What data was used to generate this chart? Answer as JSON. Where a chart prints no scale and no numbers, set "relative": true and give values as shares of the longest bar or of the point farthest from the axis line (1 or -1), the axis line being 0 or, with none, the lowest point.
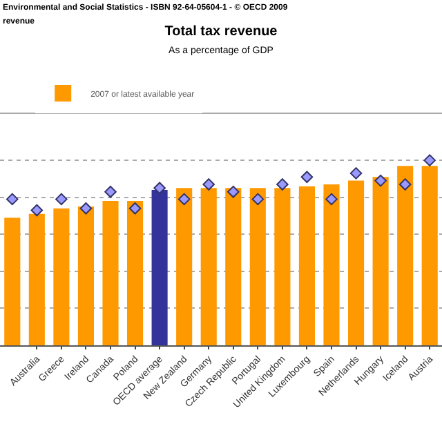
{
  "chart_data": {
    "type": "bar",
    "title": "Total tax revenue",
    "subtitle": "As a percentage of GDP",
    "annotations": [
      "Environmental and Social Statistics - ISBN 92-64-05604-1 - © OECD 2009",
      "revenue"
    ],
    "relative": true,
    "grid": "y",
    "legend": "top",
    "categories": [
      null,
      "Australia",
      "Greece",
      "Ireland",
      "Canada",
      "Poland",
      "OECD average",
      "New Zealand",
      "Germany",
      "Czech Republic",
      "Portugal",
      "United Kingdom",
      "Luxembourg",
      "Spain",
      "Netherlands",
      "Hungary",
      "Iceland",
      "Austria"
    ],
    "series": [
      {
        "name": "2007 or latest available year",
        "color": "#ff9900",
        "colors": [
          "#ff9900",
          "#ff9900",
          "#ff9900",
          "#ff9900",
          "#ff9900",
          "#ff9900",
          "#333399",
          "#ff9900",
          "#ff9900",
          "#ff9900",
          "#ff9900",
          "#ff9900",
          "#ff9900",
          "#ff9900",
          "#ff9900",
          "#ff9900",
          "#ff9900",
          "#ff9900"
        ],
        "values": [
          0.69,
          0.71,
          0.74,
          0.75,
          0.78,
          0.78,
          0.84,
          0.85,
          0.85,
          0.85,
          0.85,
          0.85,
          0.86,
          0.87,
          0.89,
          0.91,
          0.97,
          0.97
        ]
      },
      {
        "type": "scatter",
        "color": "#9999ff",
        "marker": "diamond",
        "values": [
          0.79,
          0.73,
          0.79,
          0.74,
          0.83,
          0.74,
          0.85,
          0.79,
          0.87,
          0.83,
          0.79,
          0.87,
          0.91,
          0.79,
          0.93,
          0.89,
          0.87,
          1
        ]
      }
    ]
  }
}
